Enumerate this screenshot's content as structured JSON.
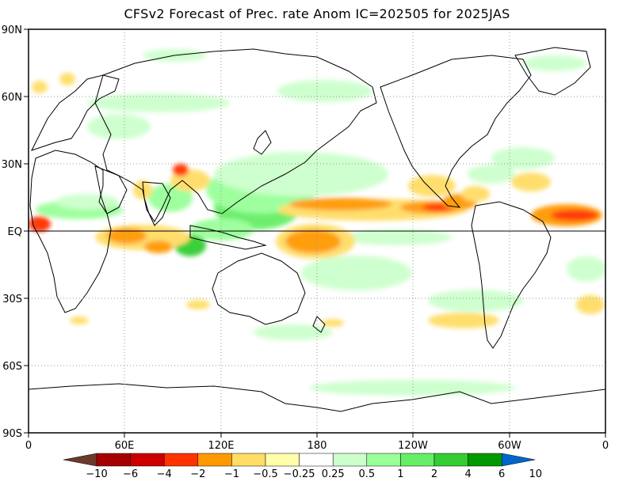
{
  "title": "CFSv2 Forecast of Prec. rate Anom IC=202505 for 2025JAS",
  "lat_labels": [
    "90N",
    "60N",
    "30N",
    "EQ",
    "30S",
    "60S",
    "90S"
  ],
  "lon_labels": [
    "0",
    "60E",
    "120E",
    "180",
    "120W",
    "60W",
    "0"
  ],
  "colorbar": {
    "labels": [
      "-10",
      "-6",
      "-4",
      "-2",
      "-1",
      "-0.5",
      "-0.25",
      "0.25",
      "0.5",
      "1",
      "2",
      "4",
      "6",
      "10"
    ],
    "colors": [
      "#6b3a2a",
      "#a50000",
      "#cc0000",
      "#ff3300",
      "#ff9900",
      "#ffdd66",
      "#ffffaa",
      "#ffffff",
      "#ccffcc",
      "#99ff99",
      "#66ee66",
      "#33cc33",
      "#009900",
      "#0066cc"
    ]
  },
  "colors": {
    "dry_strong": "#ff3300",
    "dry_moderate": "#ff9900",
    "dry_weak": "#ffdd66",
    "wet_weak": "#ccffcc",
    "wet_moderate": "#99ff99",
    "wet_strong": "#33cc33"
  }
}
